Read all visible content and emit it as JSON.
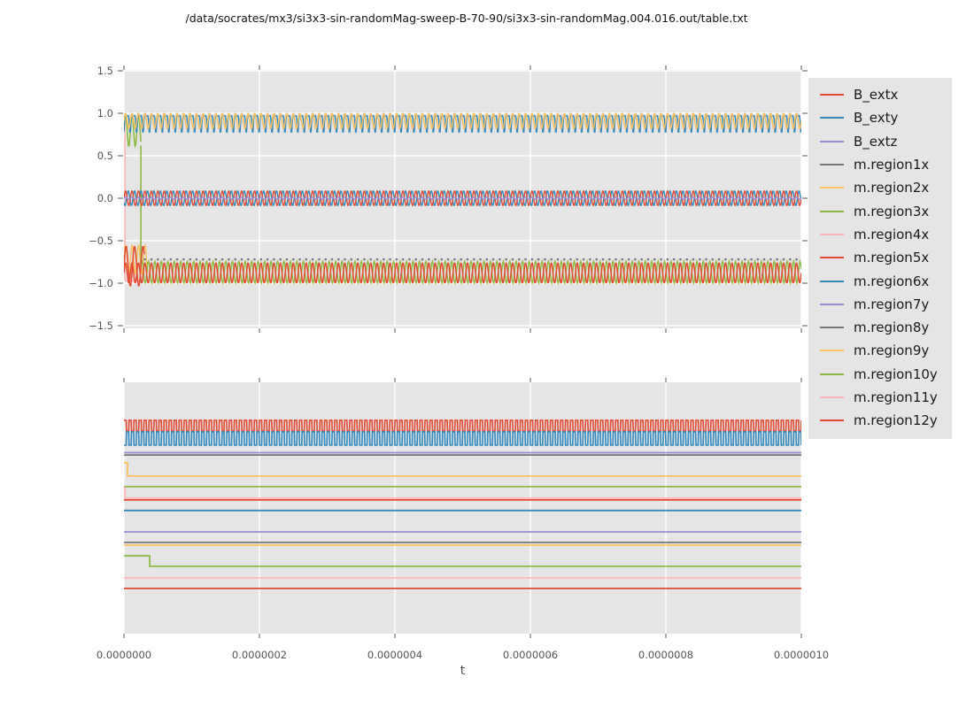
{
  "title": "/data/socrates/mx3/si3x3-sin-randomMag-sweep-B-70-90/si3x3-sin-randomMag.004.016.out/table.txt",
  "xlabel": "t",
  "colors": {
    "red": "#E24A33",
    "blue": "#348ABD",
    "purple": "#988ED5",
    "gray": "#777777",
    "orange": "#FBC15E",
    "green": "#8EBA42",
    "pink": "#FFB5B8",
    "axes_bg": "#E5E5E5",
    "grid": "#FFFFFF",
    "tick": "#555555"
  },
  "legend": {
    "position": "right of axes",
    "entries": [
      {
        "label": "B_extx",
        "color": "#E24A33"
      },
      {
        "label": "B_exty",
        "color": "#348ABD"
      },
      {
        "label": "B_extz",
        "color": "#988ED5"
      },
      {
        "label": "m.region1x",
        "color": "#777777"
      },
      {
        "label": "m.region2x",
        "color": "#FBC15E"
      },
      {
        "label": "m.region3x",
        "color": "#8EBA42"
      },
      {
        "label": "m.region4x",
        "color": "#FFB5B8"
      },
      {
        "label": "m.region5x",
        "color": "#E24A33"
      },
      {
        "label": "m.region6x",
        "color": "#348ABD"
      },
      {
        "label": "m.region7y",
        "color": "#988ED5"
      },
      {
        "label": "m.region8y",
        "color": "#777777"
      },
      {
        "label": "m.region9y",
        "color": "#FBC15E"
      },
      {
        "label": "m.region10y",
        "color": "#8EBA42"
      },
      {
        "label": "m.region11y",
        "color": "#FFB5B8"
      },
      {
        "label": "m.region12y",
        "color": "#E24A33"
      }
    ]
  },
  "xticks": {
    "fractions": [
      0,
      0.2,
      0.4,
      0.6,
      0.8,
      1
    ],
    "values": [
      0.0,
      2e-07,
      4e-07,
      6e-07,
      8e-07,
      1e-06
    ],
    "labels": [
      "0.0000000",
      "0.0000002",
      "0.0000004",
      "0.0000006",
      "0.0000008",
      "0.0000010"
    ]
  },
  "chart_data": [
    {
      "type": "line",
      "subplot": "top",
      "xlim": [
        0,
        1e-06
      ],
      "ylim": [
        -1.55,
        1.55
      ],
      "grid": true,
      "yticks": [
        1.5,
        1.0,
        0.5,
        0.0,
        -0.5,
        -1.0,
        -1.5
      ],
      "ytick_labels": [
        "1.5",
        "1.0",
        "0.5",
        "0.0",
        "−0.5",
        "−1.0",
        "−1.5"
      ],
      "xtick_labels_shown": false,
      "description": "High-frequency periodic signals: magnetization x-components oscillate in a band near +0.9 (m.region2x orange, m.region6x blue, m.region1x gray dots) and near -0.9 (m.region5x red, m.region3x green, m.region4x pink, gray dots at -0.72); external field B_extx/B_exty sinusoids of amplitude ~0.09 around 0 with B_extz flat at 0. m.region4x flips from +0.97 to -0.97 at t~2e-9; m.region3x flips from the top band to the bottom band at t~2.5e-8.",
      "series": [
        {
          "name": "m.region1x-top-dots",
          "color": "#777777",
          "gen": "dots",
          "level": 0.99,
          "cycles": 105,
          "offset": 0.25
        },
        {
          "name": "m.region4x",
          "color": "#FFB5B8",
          "gen": "steps",
          "levels": [
            [
              0,
              0.97
            ],
            [
              0.0015,
              -0.97
            ]
          ],
          "w": 1.6
        },
        {
          "name": "m.region2x-start-transient",
          "color": "#FBC15E",
          "gen": "sine",
          "base": -0.72,
          "amp": 0.17,
          "cycles": 105,
          "t0": 0,
          "t1": 0.035,
          "w": 1.4
        },
        {
          "name": "m.region3x-top",
          "color": "#8EBA42",
          "gen": "sine",
          "base": 0.8,
          "amp": 0.19,
          "cycles": 105,
          "t0": 0,
          "t1": 0.025,
          "w": 1.6
        },
        {
          "name": "m.region3x-drop",
          "color": "#8EBA42",
          "gen": "vline",
          "x": 0.025,
          "from": 0.62,
          "to": -0.8,
          "w": 1.6
        },
        {
          "name": "m.region3x-bottom",
          "color": "#8EBA42",
          "gen": "sine",
          "base": -0.87,
          "amp": 0.13,
          "cycles": 105,
          "phase": 0.45,
          "t0": 0.025,
          "t1": 1,
          "w": 1.4
        },
        {
          "name": "m.region5x-start-transient",
          "color": "#E24A33",
          "gen": "sine",
          "base": -0.8,
          "amp": 0.24,
          "cycles": 80,
          "t0": 0,
          "t1": 0.03,
          "w": 1.5
        },
        {
          "name": "m.region5x",
          "color": "#E24A33",
          "gen": "sine",
          "base": -0.88,
          "amp": 0.12,
          "cycles": 105,
          "w": 1.5
        },
        {
          "name": "m.region1x-bottom-dots",
          "color": "#777777",
          "gen": "dots",
          "level": -0.72,
          "cycles": 105,
          "offset": 0.25,
          "t0": 0.03
        },
        {
          "name": "m.region6x",
          "color": "#348ABD",
          "gen": "pulse",
          "base": 0.97,
          "depth": 0.22,
          "power": 3,
          "cycles": 105,
          "phase": 0.3,
          "w": 1.5
        },
        {
          "name": "m.region2x",
          "color": "#FBC15E",
          "gen": "sine",
          "base": 0.91,
          "amp": 0.09,
          "cycles": 105,
          "w": 1.5
        },
        {
          "name": "B_exty",
          "color": "#348ABD",
          "gen": "sine",
          "base": 0,
          "amp": 0.088,
          "cycles": 105,
          "phase": 0.6,
          "w": 1.4
        },
        {
          "name": "B_extx",
          "color": "#E24A33",
          "gen": "sine",
          "base": 0,
          "amp": 0.088,
          "cycles": 105,
          "w": 1.4
        },
        {
          "name": "B_extz",
          "color": "#988ED5",
          "gen": "sine",
          "base": 0,
          "amp": 0.01,
          "cycles": 105,
          "w": 1.5
        }
      ]
    },
    {
      "type": "line",
      "subplot": "bottom",
      "xlim": [
        0,
        1e-06
      ],
      "grid": true,
      "yticks": [],
      "xtick_labels_shown": true,
      "description": "y-component traces: two square waves at the top (red, blue) and mostly-constant horizontal lines below; orange, pink and green traces step down to lower levels near t=0. Vertical positions given as fraction of axes height from the top.",
      "series": [
        {
          "name": "square-red",
          "color": "#E24A33",
          "gen": "square",
          "hi": 0.151,
          "lo": 0.194,
          "cycles": 135,
          "duty": 0.5,
          "w": 1.6
        },
        {
          "name": "square-blue",
          "color": "#348ABD",
          "gen": "square",
          "hi": 0.197,
          "lo": 0.25,
          "cycles": 135,
          "duty": 0.45,
          "phase": 0.5,
          "w": 1.6
        },
        {
          "name": "flat-gray-a",
          "color": "#777777",
          "gen": "flat",
          "level": 0.289,
          "w": 1.8
        },
        {
          "name": "flat-purple-a",
          "color": "#988ED5",
          "gen": "flat",
          "level": 0.28,
          "w": 1.8
        },
        {
          "name": "step-orange",
          "color": "#FBC15E",
          "gen": "steps",
          "levels": [
            [
              0,
              0.32
            ],
            [
              0.0052,
              0.373
            ]
          ],
          "w": 1.8
        },
        {
          "name": "flat-green-a",
          "color": "#8EBA42",
          "gen": "flat",
          "level": 0.415,
          "w": 1.8
        },
        {
          "name": "step-pink",
          "color": "#FFB5B8",
          "gen": "steps",
          "levels": [
            [
              0,
              0.419
            ],
            [
              0.0015,
              0.461
            ]
          ],
          "w": 1.8
        },
        {
          "name": "flat-red-a",
          "color": "#E24A33",
          "gen": "flat",
          "level": 0.468,
          "w": 1.8
        },
        {
          "name": "flat-blue-a",
          "color": "#348ABD",
          "gen": "flat",
          "level": 0.51,
          "w": 1.8
        },
        {
          "name": "flat-purple-b",
          "color": "#988ED5",
          "gen": "flat",
          "level": 0.595,
          "w": 1.8
        },
        {
          "name": "flat-gray-b",
          "color": "#777777",
          "gen": "flat",
          "level": 0.637,
          "w": 1.8
        },
        {
          "name": "flat-orange-b",
          "color": "#FBC15E",
          "gen": "flat",
          "level": 0.648,
          "w": 1.8
        },
        {
          "name": "step-green",
          "color": "#8EBA42",
          "gen": "steps",
          "levels": [
            [
              0,
              0.69
            ],
            [
              0.038,
              0.732
            ]
          ],
          "w": 1.8
        },
        {
          "name": "flat-pink-b",
          "color": "#FFB5B8",
          "gen": "flat",
          "level": 0.778,
          "w": 1.8
        },
        {
          "name": "flat-red-b",
          "color": "#E24A33",
          "gen": "flat",
          "level": 0.82,
          "w": 1.8
        }
      ]
    }
  ]
}
